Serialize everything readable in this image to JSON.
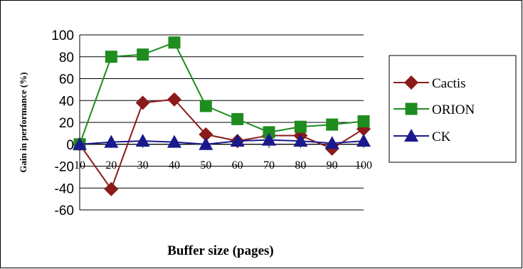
{
  "chart_data": {
    "type": "line",
    "title": "",
    "xlabel": "Buffer size (pages)",
    "ylabel": "Gain in performance  (%)",
    "categories": [
      "10",
      "20",
      "30",
      "40",
      "50",
      "60",
      "70",
      "80",
      "90",
      "100"
    ],
    "ylim": [
      -60,
      100
    ],
    "yticks": [
      -60,
      -40,
      -20,
      0,
      20,
      40,
      60,
      80,
      100
    ],
    "grid": true,
    "legend_position": "right",
    "series": [
      {
        "name": "Cactis",
        "color": "#8B1A1A",
        "marker": "diamond",
        "values": [
          0,
          -41,
          38,
          41,
          9,
          3,
          8,
          8,
          -4,
          14
        ]
      },
      {
        "name": "ORION",
        "color": "#1E8C1E",
        "marker": "square",
        "values": [
          0,
          80,
          82,
          93,
          35,
          23,
          11,
          16,
          18,
          21
        ]
      },
      {
        "name": "CK",
        "color": "#1A1A8C",
        "marker": "triangle",
        "values": [
          0,
          2,
          3,
          2,
          0,
          3,
          4,
          3,
          1,
          3
        ]
      }
    ]
  }
}
